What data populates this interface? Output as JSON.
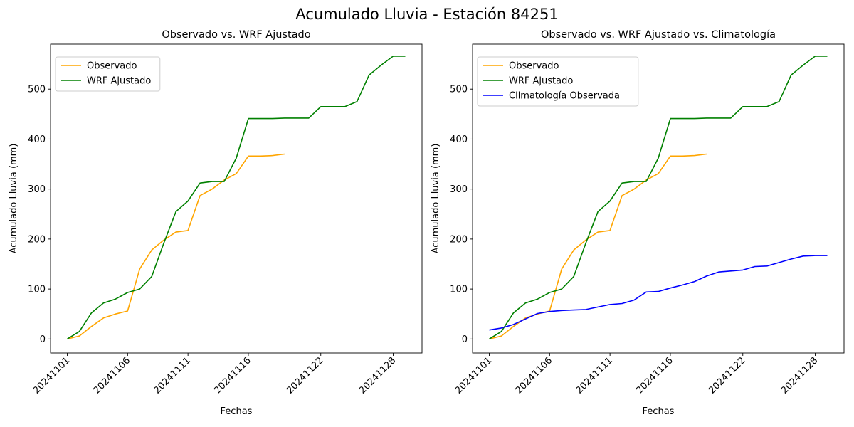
{
  "suptitle": "Acumulado Lluvia - Estación 84251",
  "chart_data": [
    {
      "type": "line",
      "title": "Observado vs. WRF Ajustado",
      "xlabel": "Fechas",
      "ylabel": "Acumulado Lluvia (mm)",
      "ylim": [
        -28,
        590
      ],
      "yticks": [
        0,
        100,
        200,
        300,
        400,
        500
      ],
      "x_start": "20241101",
      "x_end": "20241129",
      "xticks": [
        "20241101",
        "20241106",
        "20241111",
        "20241116",
        "20241122",
        "20241128"
      ],
      "grid": false,
      "legend_position": "upper-left",
      "series": [
        {
          "name": "Observado",
          "color": "#ffa500",
          "x": [
            "20241101",
            "20241102",
            "20241103",
            "20241104",
            "20241105",
            "20241106",
            "20241107",
            "20241108",
            "20241109",
            "20241110",
            "20241111",
            "20241112",
            "20241113",
            "20241114",
            "20241115",
            "20241116",
            "20241117",
            "20241118",
            "20241119"
          ],
          "values": [
            0,
            6,
            25,
            42,
            50,
            56,
            140,
            178,
            198,
            214,
            217,
            287,
            300,
            318,
            331,
            366,
            366,
            367,
            370
          ]
        },
        {
          "name": "WRF Ajustado",
          "color": "#008000",
          "x": [
            "20241101",
            "20241102",
            "20241103",
            "20241104",
            "20241105",
            "20241106",
            "20241107",
            "20241108",
            "20241109",
            "20241110",
            "20241111",
            "20241112",
            "20241113",
            "20241114",
            "20241115",
            "20241116",
            "20241117",
            "20241118",
            "20241119",
            "20241120",
            "20241121",
            "20241122",
            "20241123",
            "20241124",
            "20241125",
            "20241126",
            "20241127",
            "20241128",
            "20241129"
          ],
          "values": [
            0,
            15,
            52,
            72,
            80,
            93,
            100,
            125,
            192,
            255,
            276,
            312,
            315,
            315,
            362,
            441,
            441,
            441,
            442,
            442,
            442,
            465,
            465,
            465,
            475,
            528,
            548,
            566,
            566
          ]
        }
      ]
    },
    {
      "type": "line",
      "title": "Observado vs. WRF Ajustado vs. Climatología",
      "xlabel": "Fechas",
      "ylabel": "Acumulado Lluvia (mm)",
      "ylim": [
        -28,
        590
      ],
      "yticks": [
        0,
        100,
        200,
        300,
        400,
        500
      ],
      "x_start": "20241101",
      "x_end": "20241129",
      "xticks": [
        "20241101",
        "20241106",
        "20241111",
        "20241116",
        "20241122",
        "20241128"
      ],
      "grid": false,
      "legend_position": "upper-left",
      "series": [
        {
          "name": "Observado",
          "color": "#ffa500",
          "x": [
            "20241101",
            "20241102",
            "20241103",
            "20241104",
            "20241105",
            "20241106",
            "20241107",
            "20241108",
            "20241109",
            "20241110",
            "20241111",
            "20241112",
            "20241113",
            "20241114",
            "20241115",
            "20241116",
            "20241117",
            "20241118",
            "20241119"
          ],
          "values": [
            0,
            6,
            25,
            42,
            50,
            56,
            140,
            178,
            198,
            214,
            217,
            287,
            300,
            318,
            331,
            366,
            366,
            367,
            370
          ]
        },
        {
          "name": "WRF Ajustado",
          "color": "#008000",
          "x": [
            "20241101",
            "20241102",
            "20241103",
            "20241104",
            "20241105",
            "20241106",
            "20241107",
            "20241108",
            "20241109",
            "20241110",
            "20241111",
            "20241112",
            "20241113",
            "20241114",
            "20241115",
            "20241116",
            "20241117",
            "20241118",
            "20241119",
            "20241120",
            "20241121",
            "20241122",
            "20241123",
            "20241124",
            "20241125",
            "20241126",
            "20241127",
            "20241128",
            "20241129"
          ],
          "values": [
            0,
            15,
            52,
            72,
            80,
            93,
            100,
            125,
            192,
            255,
            276,
            312,
            315,
            315,
            362,
            441,
            441,
            441,
            442,
            442,
            442,
            465,
            465,
            465,
            475,
            528,
            548,
            566,
            566
          ]
        },
        {
          "name": "Climatología Observada",
          "color": "#0000ff",
          "x": [
            "20241101",
            "20241102",
            "20241103",
            "20241104",
            "20241105",
            "20241106",
            "20241107",
            "20241108",
            "20241109",
            "20241110",
            "20241111",
            "20241112",
            "20241113",
            "20241114",
            "20241115",
            "20241116",
            "20241117",
            "20241118",
            "20241119",
            "20241120",
            "20241121",
            "20241122",
            "20241123",
            "20241124",
            "20241125",
            "20241126",
            "20241127",
            "20241128",
            "20241129"
          ],
          "values": [
            18,
            22,
            29,
            40,
            51,
            55,
            57,
            58,
            59,
            64,
            69,
            71,
            78,
            94,
            95,
            102,
            108,
            115,
            126,
            134,
            136,
            138,
            145,
            146,
            153,
            160,
            166,
            167,
            167
          ]
        }
      ]
    }
  ]
}
